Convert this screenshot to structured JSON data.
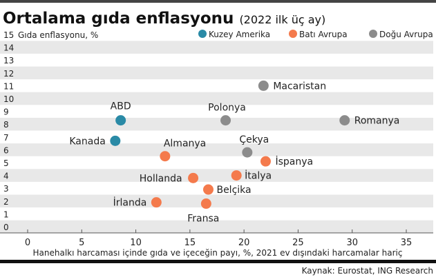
{
  "chart_data": {
    "type": "scatter",
    "title": "Ortalama gıda enflasyonu",
    "subtitle": "(2022 ilk üç ay)",
    "ylabel": "Gıda enflasyonu, %",
    "xlabel": "Hanehalkı harcaması içinde gıda ve içeceğin payı, %, 2021 ev dışındaki harcamalar hariç",
    "source": "Kaynak: Eurostat, ING Research",
    "xlim": [
      0,
      35
    ],
    "ylim": [
      0,
      15
    ],
    "xticks": [
      "0",
      "5",
      "10",
      "15",
      "20",
      "25",
      "30",
      "35"
    ],
    "yticks": [
      "0",
      "1",
      "2",
      "3",
      "4",
      "5",
      "6",
      "7",
      "8",
      "9",
      "10",
      "11",
      "12",
      "13",
      "14",
      "15"
    ],
    "legend_position": "top-right",
    "groups": [
      {
        "name": "Kuzey Amerika",
        "color": "#2a8aa6"
      },
      {
        "name": "Batı Avrupa",
        "color": "#f47a4c"
      },
      {
        "name": "Doğu Avrupa",
        "color": "#8c8c8c"
      }
    ],
    "points": [
      {
        "label": "ABD",
        "group": 0,
        "x": 8.6,
        "y": 8.3
      },
      {
        "label": "Kanada",
        "group": 0,
        "x": 8.1,
        "y": 6.7
      },
      {
        "label": "Almanya",
        "group": 1,
        "x": 12.7,
        "y": 5.5
      },
      {
        "label": "Hollanda",
        "group": 1,
        "x": 15.3,
        "y": 3.8
      },
      {
        "label": "Belçika",
        "group": 1,
        "x": 16.7,
        "y": 2.9
      },
      {
        "label": "Fransa",
        "group": 1,
        "x": 16.5,
        "y": 1.8
      },
      {
        "label": "İrlanda",
        "group": 1,
        "x": 11.9,
        "y": 1.9
      },
      {
        "label": "İtalya",
        "group": 1,
        "x": 19.3,
        "y": 4.0
      },
      {
        "label": "İspanya",
        "group": 1,
        "x": 22.0,
        "y": 5.1
      },
      {
        "label": "Çekya",
        "group": 2,
        "x": 20.3,
        "y": 5.8
      },
      {
        "label": "Polonya",
        "group": 2,
        "x": 18.3,
        "y": 8.3
      },
      {
        "label": "Macaristan",
        "group": 2,
        "x": 21.8,
        "y": 11.0
      },
      {
        "label": "Romanya",
        "group": 2,
        "x": 29.3,
        "y": 8.3
      }
    ]
  }
}
